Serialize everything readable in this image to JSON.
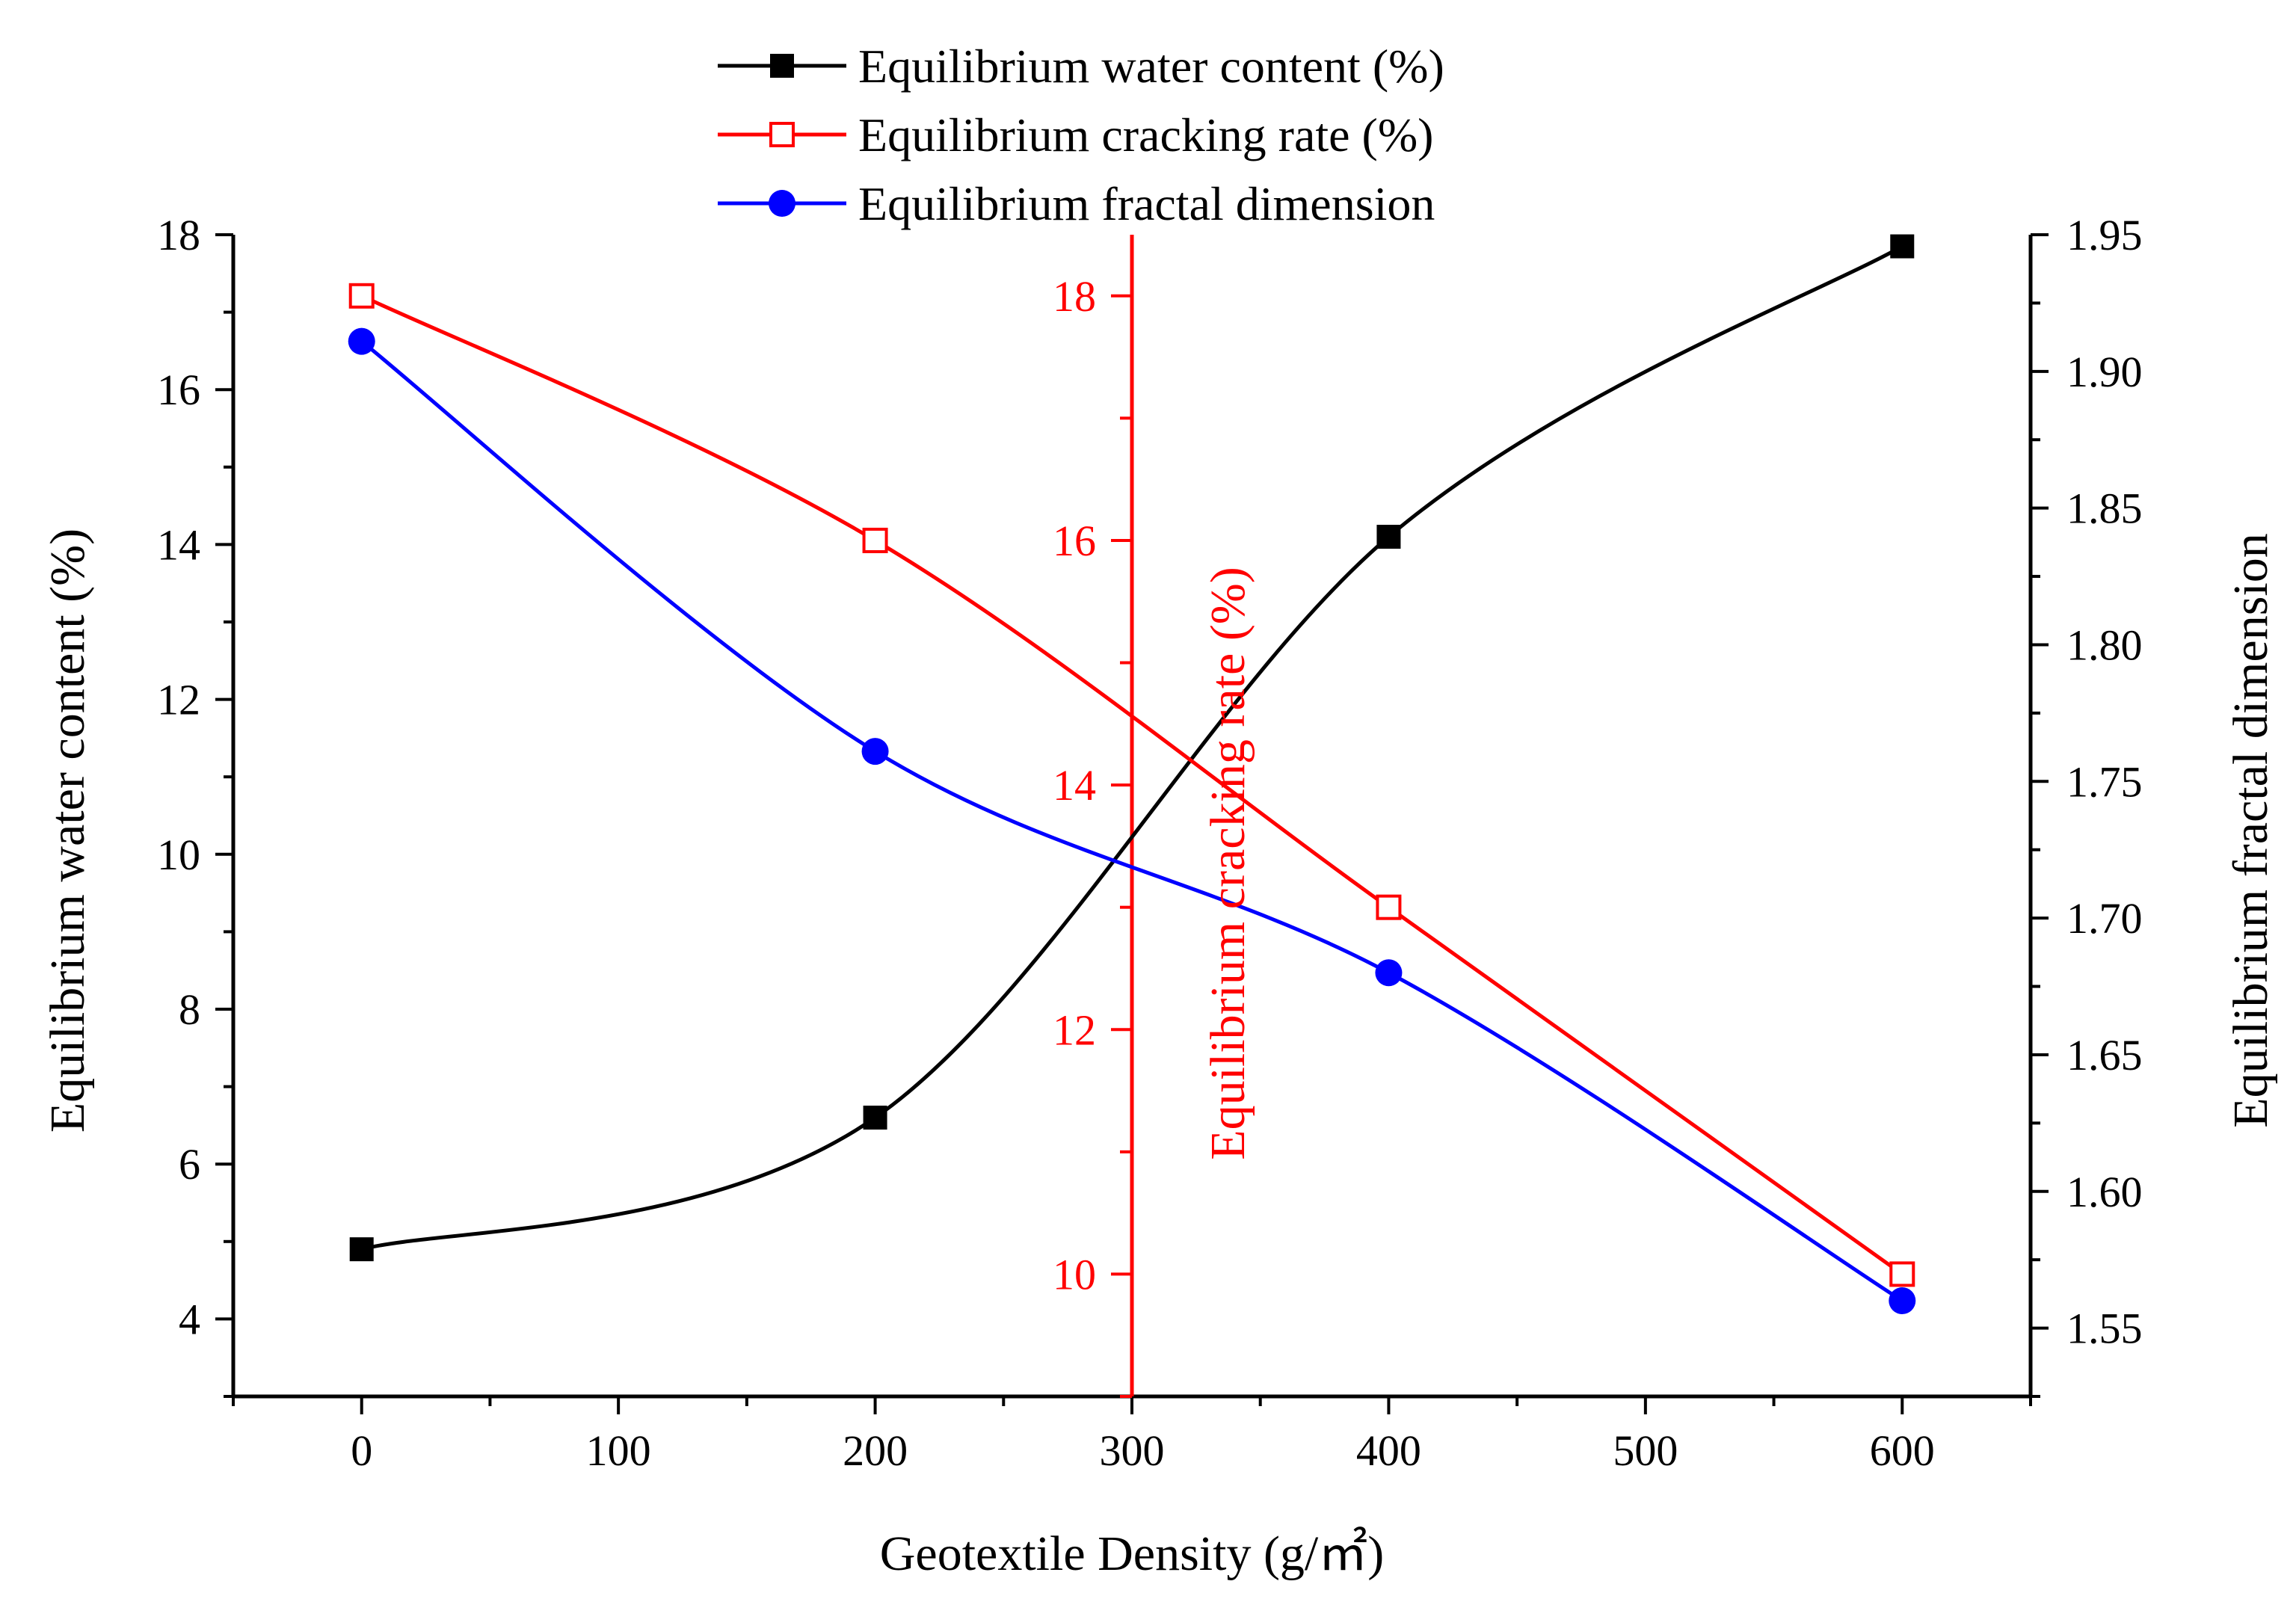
{
  "chart_data": {
    "type": "line",
    "xlabel": "Geotextile Density (g/㎡)",
    "x_ticks": [
      "0",
      "100",
      "200",
      "300",
      "400",
      "500",
      "600"
    ],
    "xlim": [
      -50,
      650
    ],
    "x_tick_values": [
      0,
      100,
      200,
      300,
      400,
      500,
      600
    ],
    "x": [
      0,
      200,
      400,
      600
    ],
    "axes": {
      "left": {
        "label": "Equilibrium water content (%)",
        "ylim": [
          3,
          18
        ],
        "ticks": [
          4,
          6,
          8,
          10,
          12,
          14,
          16,
          18
        ],
        "tick_labels": [
          "4",
          "6",
          "8",
          "10",
          "12",
          "14",
          "16",
          "18"
        ],
        "color": "#000000"
      },
      "middle": {
        "label": "Equilibrium cracking rate (%)",
        "ylim": [
          9,
          18.5
        ],
        "ticks": [
          10,
          12,
          14,
          16,
          18
        ],
        "tick_labels": [
          "10",
          "12",
          "14",
          "16",
          "18"
        ],
        "color": "#ff0000"
      },
      "right": {
        "label": "Equilibrium fractal dimension",
        "ylim": [
          1.525,
          1.95
        ],
        "ticks": [
          1.55,
          1.6,
          1.65,
          1.7,
          1.75,
          1.8,
          1.85,
          1.9,
          1.95
        ],
        "tick_labels": [
          "1.55",
          "1.60",
          "1.65",
          "1.70",
          "1.75",
          "1.80",
          "1.85",
          "1.90",
          "1.95"
        ],
        "color": "#000000"
      }
    },
    "series": [
      {
        "name": "Equilibrium water content (%)",
        "axis": "left",
        "color": "#000000",
        "marker": "filled-square",
        "values": [
          4.9,
          6.6,
          14.1,
          17.85
        ]
      },
      {
        "name": "Equilibrium cracking rate (%)",
        "axis": "middle",
        "color": "#ff0000",
        "marker": "open-square",
        "values": [
          18.0,
          16.0,
          13.0,
          10.0
        ]
      },
      {
        "name": "Equilibrium fractal dimension",
        "axis": "right",
        "color": "#0000ff",
        "marker": "filled-circle",
        "values": [
          1.911,
          1.761,
          1.68,
          1.56
        ]
      }
    ],
    "legend_position": "top-center"
  }
}
